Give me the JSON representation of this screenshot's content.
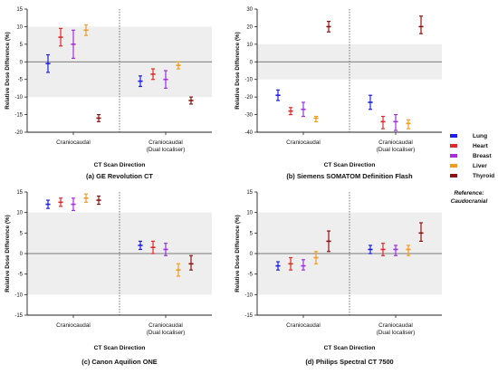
{
  "legend": {
    "items": [
      {
        "name": "Lung",
        "color": "#1e1ee6"
      },
      {
        "name": "Heart",
        "color": "#e02a2a"
      },
      {
        "name": "Breast",
        "color": "#a42ee0"
      },
      {
        "name": "Liver",
        "color": "#f39c1e"
      },
      {
        "name": "Thyroid",
        "color": "#8b1515"
      }
    ],
    "reference_label": "Reference:",
    "reference_value": "Caudocranial"
  },
  "chart_data": [
    {
      "type": "scatter",
      "panel": "(a) GE Revolution CT",
      "ylabel": "Relative Dose Difference (%)",
      "xlabel": "CT Scan Direction",
      "categories": [
        "Craniocaudal",
        "Craniocaudal\n(Dual localiser)"
      ],
      "ylim": [
        -20,
        15
      ],
      "yticks": [
        -20,
        -15,
        -10,
        -5,
        0,
        5,
        10,
        15
      ],
      "shaded_band": [
        -10,
        10
      ],
      "series": [
        {
          "name": "Lung",
          "values": [
            {
              "mean": -0.5,
              "low": -3,
              "high": 2
            },
            {
              "mean": -5.5,
              "low": -7,
              "high": -4
            }
          ]
        },
        {
          "name": "Heart",
          "values": [
            {
              "mean": 7,
              "low": 4.5,
              "high": 9.5
            },
            {
              "mean": -3.5,
              "low": -5,
              "high": -2
            }
          ]
        },
        {
          "name": "Breast",
          "values": [
            {
              "mean": 5,
              "low": 1,
              "high": 9
            },
            {
              "mean": -5,
              "low": -7.5,
              "high": -2.5
            }
          ]
        },
        {
          "name": "Liver",
          "values": [
            {
              "mean": 9,
              "low": 7.5,
              "high": 10.5
            },
            {
              "mean": -1,
              "low": -2,
              "high": 0
            }
          ]
        },
        {
          "name": "Thyroid",
          "values": [
            {
              "mean": -16,
              "low": -17,
              "high": -15
            },
            {
              "mean": -11,
              "low": -12,
              "high": -10
            }
          ]
        }
      ]
    },
    {
      "type": "scatter",
      "panel": "(b) Siemens SOMATOM Definition Flash",
      "ylabel": "Relative Dose Difference (%)",
      "xlabel": "CT Scan Direction",
      "categories": [
        "Craniocaudal",
        "Craniocaudal\n(Dual localiser)"
      ],
      "ylim": [
        -40,
        30
      ],
      "yticks": [
        -40,
        -30,
        -20,
        -10,
        0,
        10,
        20,
        30
      ],
      "shaded_band": [
        -10,
        10
      ],
      "series": [
        {
          "name": "Lung",
          "values": [
            {
              "mean": -19,
              "low": -22,
              "high": -16
            },
            {
              "mean": -23,
              "low": -27,
              "high": -19
            }
          ]
        },
        {
          "name": "Heart",
          "values": [
            {
              "mean": -28,
              "low": -30,
              "high": -26
            },
            {
              "mean": -34,
              "low": -38,
              "high": -31
            }
          ]
        },
        {
          "name": "Breast",
          "values": [
            {
              "mean": -27,
              "low": -31,
              "high": -23
            },
            {
              "mean": -34,
              "low": -39,
              "high": -30
            }
          ]
        },
        {
          "name": "Liver",
          "values": [
            {
              "mean": -32,
              "low": -34,
              "high": -31
            },
            {
              "mean": -35,
              "low": -38,
              "high": -33
            }
          ]
        },
        {
          "name": "Thyroid",
          "values": [
            {
              "mean": 20,
              "low": 17,
              "high": 23
            },
            {
              "mean": 20,
              "low": 16,
              "high": 26
            }
          ]
        }
      ]
    },
    {
      "type": "scatter",
      "panel": "(c) Canon Aquilion ONE",
      "ylabel": "Relative Dose Difference (%)",
      "xlabel": "CT Scan Direction",
      "categories": [
        "Craniocaudal",
        "Craniocaudal\n(Dual localiser)"
      ],
      "ylim": [
        -15,
        15
      ],
      "yticks": [
        -15,
        -10,
        -5,
        0,
        5,
        10,
        15
      ],
      "shaded_band": [
        -10,
        10
      ],
      "series": [
        {
          "name": "Lung",
          "values": [
            {
              "mean": 12,
              "low": 11,
              "high": 13
            },
            {
              "mean": 2,
              "low": 1,
              "high": 3
            }
          ]
        },
        {
          "name": "Heart",
          "values": [
            {
              "mean": 12.5,
              "low": 11.5,
              "high": 13.5
            },
            {
              "mean": 1.5,
              "low": 0,
              "high": 3
            }
          ]
        },
        {
          "name": "Breast",
          "values": [
            {
              "mean": 12,
              "low": 10.5,
              "high": 13.5
            },
            {
              "mean": 1,
              "low": -0.5,
              "high": 2.5
            }
          ]
        },
        {
          "name": "Liver",
          "values": [
            {
              "mean": 13.5,
              "low": 12.5,
              "high": 14.5
            },
            {
              "mean": -4,
              "low": -5.5,
              "high": -2.5
            }
          ]
        },
        {
          "name": "Thyroid",
          "values": [
            {
              "mean": 13,
              "low": 12,
              "high": 14
            },
            {
              "mean": -2.5,
              "low": -4,
              "high": -0.5
            }
          ]
        }
      ]
    },
    {
      "type": "scatter",
      "panel": "(d) Philips Spectral CT 7500",
      "ylabel": "Relative Dose Difference (%)",
      "xlabel": "CT Scan Direction",
      "categories": [
        "Craniocaudal",
        "Craniocaudal\n(Dual localiser)"
      ],
      "ylim": [
        -15,
        15
      ],
      "yticks": [
        -15,
        -10,
        -5,
        0,
        5,
        10,
        15
      ],
      "shaded_band": [
        -10,
        10
      ],
      "series": [
        {
          "name": "Lung",
          "values": [
            {
              "mean": -3,
              "low": -4,
              "high": -2
            },
            {
              "mean": 1,
              "low": 0,
              "high": 2
            }
          ]
        },
        {
          "name": "Heart",
          "values": [
            {
              "mean": -2.5,
              "low": -4,
              "high": -1
            },
            {
              "mean": 1,
              "low": -0.5,
              "high": 2.5
            }
          ]
        },
        {
          "name": "Breast",
          "values": [
            {
              "mean": -3,
              "low": -4,
              "high": -1.5
            },
            {
              "mean": 1,
              "low": -0.5,
              "high": 2
            }
          ]
        },
        {
          "name": "Liver",
          "values": [
            {
              "mean": -1,
              "low": -2.5,
              "high": 0.5
            },
            {
              "mean": 1,
              "low": -0.5,
              "high": 2
            }
          ]
        },
        {
          "name": "Thyroid",
          "values": [
            {
              "mean": 3,
              "low": 0.5,
              "high": 5.5
            },
            {
              "mean": 5,
              "low": 3,
              "high": 7.5
            }
          ]
        }
      ]
    }
  ]
}
